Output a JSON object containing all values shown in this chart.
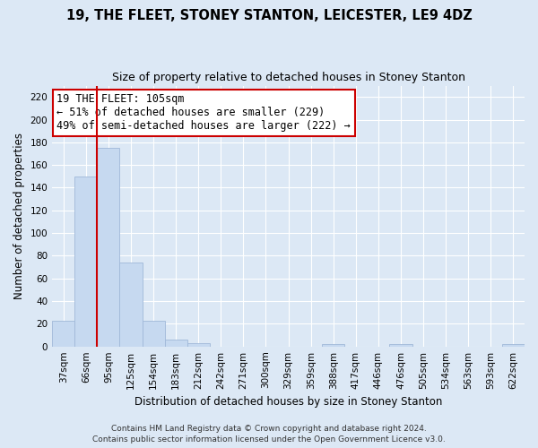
{
  "title": "19, THE FLEET, STONEY STANTON, LEICESTER, LE9 4DZ",
  "subtitle": "Size of property relative to detached houses in Stoney Stanton",
  "xlabel": "Distribution of detached houses by size in Stoney Stanton",
  "ylabel": "Number of detached properties",
  "footer_line1": "Contains HM Land Registry data © Crown copyright and database right 2024.",
  "footer_line2": "Contains public sector information licensed under the Open Government Licence v3.0.",
  "bin_labels": [
    "37sqm",
    "66sqm",
    "95sqm",
    "125sqm",
    "154sqm",
    "183sqm",
    "212sqm",
    "242sqm",
    "271sqm",
    "300sqm",
    "329sqm",
    "359sqm",
    "388sqm",
    "417sqm",
    "446sqm",
    "476sqm",
    "505sqm",
    "534sqm",
    "563sqm",
    "593sqm",
    "622sqm"
  ],
  "bar_heights": [
    23,
    150,
    175,
    74,
    23,
    6,
    3,
    0,
    0,
    0,
    0,
    0,
    2,
    0,
    0,
    2,
    0,
    0,
    0,
    0,
    2
  ],
  "bar_color": "#c6d9f0",
  "bar_edge_color": "#a0b8d8",
  "vline_color": "#cc0000",
  "ylim": [
    0,
    230
  ],
  "yticks": [
    0,
    20,
    40,
    60,
    80,
    100,
    120,
    140,
    160,
    180,
    200,
    220
  ],
  "annotation_title": "19 THE FLEET: 105sqm",
  "annotation_line1": "← 51% of detached houses are smaller (229)",
  "annotation_line2": "49% of semi-detached houses are larger (222) →",
  "annotation_box_color": "white",
  "annotation_box_edge": "#cc0000",
  "bg_color": "#dce8f5",
  "plot_bg_color": "#dce8f5",
  "title_fontsize": 10.5,
  "subtitle_fontsize": 9,
  "ylabel_fontsize": 8.5,
  "xlabel_fontsize": 8.5,
  "tick_fontsize": 7.5,
  "footer_fontsize": 6.5,
  "annotation_fontsize": 8.5
}
